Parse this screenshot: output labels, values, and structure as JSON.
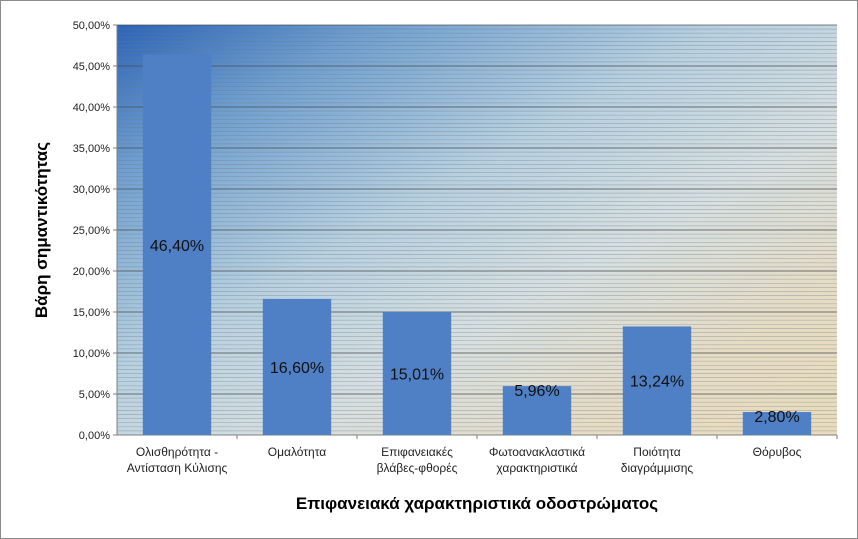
{
  "chart_data": {
    "type": "bar",
    "title": "",
    "xlabel": "Επιφανειακά χαρακτηριστικά οδοστρώματος",
    "ylabel": "Βάρη σημαντικότητας",
    "ylim": [
      0,
      0.5
    ],
    "y_ticks": [
      "0,00%",
      "5,00%",
      "10,00%",
      "15,00%",
      "20,00%",
      "25,00%",
      "30,00%",
      "35,00%",
      "40,00%",
      "45,00%",
      "50,00%"
    ],
    "categories": [
      [
        "Ολισθηρότητα -",
        "Αντίσταση Κύλισης"
      ],
      [
        "Ομαλότητα"
      ],
      [
        "Επιφανειακές",
        "βλάβες-φθορές"
      ],
      [
        "Φωτοανακλαστικά",
        "χαρακτηριστικά"
      ],
      [
        "Ποιότητα",
        "διαγράμμισης"
      ],
      [
        "Θόρυβος"
      ]
    ],
    "values": [
      0.464,
      0.166,
      0.1501,
      0.0596,
      0.1324,
      0.028
    ],
    "data_labels": [
      "46,40%",
      "16,60%",
      "15,01%",
      "5,96%",
      "13,24%",
      "2,80%"
    ],
    "bar_color": "#4f7fc4",
    "grid": true,
    "legend": "none"
  }
}
